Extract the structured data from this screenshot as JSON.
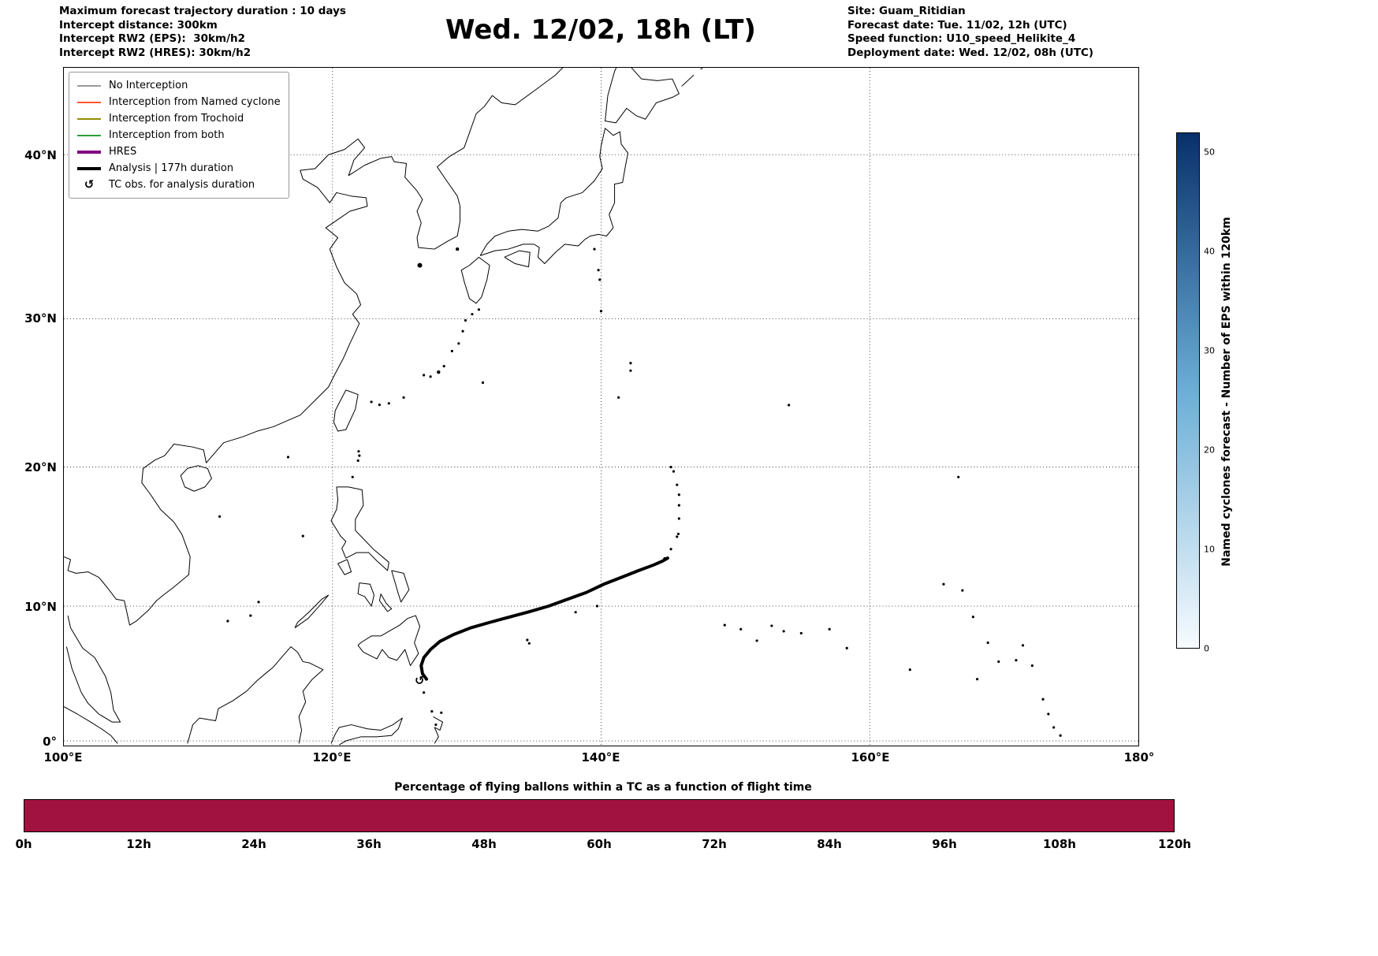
{
  "header_left": {
    "line1": "Maximum forecast trajectory duration : 10 days",
    "line2": "Intercept distance: 300km",
    "line3": "Intercept RW2 (EPS):  30km/h2",
    "line4": "Intercept RW2 (HRES): 30km/h2"
  },
  "title": "Wed. 12/02, 18h (LT)",
  "header_right": {
    "line1": "Site: Guam_Ritidian",
    "line2": "Forecast date: Tue. 11/02, 12h (UTC)",
    "line3": "Speed function: U10_speed_Helikite_4",
    "line4": "Deployment date: Wed. 12/02, 08h (UTC)"
  },
  "legend": {
    "items": [
      {
        "label": "No Interception",
        "color": "#9a9a9a",
        "thick": false
      },
      {
        "label": "Interception from Named cyclone",
        "color": "#ff5533",
        "thick": false
      },
      {
        "label": "Interception from Trochoid",
        "color": "#8f8f00",
        "thick": false
      },
      {
        "label": "Interception from both",
        "color": "#2e9e3e",
        "thick": false
      },
      {
        "label": "HRES",
        "color": "#800080",
        "thick": true
      },
      {
        "label": "Analysis | 177h duration",
        "color": "#000000",
        "thick": true
      },
      {
        "label": "TC obs. for analysis duration",
        "symbol": "↺",
        "color": "#000000"
      }
    ]
  },
  "map_axes": {
    "y_ticks": [
      "40°N",
      "30°N",
      "20°N",
      "10°N",
      "0°"
    ],
    "x_ticks": [
      "100°E",
      "120°E",
      "140°E",
      "160°E",
      "180°"
    ]
  },
  "colorbar": {
    "label": "Named cyclones forecast - Number of EPS within 120km",
    "ticks": [
      "0",
      "10",
      "20",
      "30",
      "40",
      "50"
    ],
    "range": [
      0,
      52
    ],
    "color_low": "#f7fbff",
    "color_mid": "#6baed6",
    "color_high": "#08306b"
  },
  "bottom_chart": {
    "title": "Percentage of flying ballons within a TC as a function of flight time",
    "x_ticks": [
      "0h",
      "12h",
      "24h",
      "36h",
      "48h",
      "60h",
      "72h",
      "84h",
      "96h",
      "108h",
      "120h"
    ],
    "bar_color": "#a21240"
  },
  "chart_data": [
    {
      "type": "line",
      "name": "analysis-trajectory",
      "description": "Analysis TC track (177h duration) on Mercator map, extent 100E-180E / 0N-45N",
      "x_range_lon": [
        100,
        180
      ],
      "y_range_lat": [
        0,
        45
      ],
      "series": [
        {
          "name": "Analysis | 177h duration",
          "points_lon_lat": [
            [
              127.0,
              4.6
            ],
            [
              126.7,
              5.0
            ],
            [
              126.6,
              5.6
            ],
            [
              126.8,
              6.2
            ],
            [
              127.3,
              6.8
            ],
            [
              128.0,
              7.4
            ],
            [
              129.0,
              7.9
            ],
            [
              130.3,
              8.4
            ],
            [
              131.7,
              8.8
            ],
            [
              133.2,
              9.2
            ],
            [
              134.7,
              9.6
            ],
            [
              136.1,
              10.0
            ],
            [
              137.5,
              10.5
            ],
            [
              138.9,
              11.0
            ],
            [
              140.2,
              11.6
            ],
            [
              141.5,
              12.1
            ],
            [
              142.8,
              12.6
            ],
            [
              143.9,
              13.0
            ],
            [
              144.6,
              13.3
            ],
            [
              144.95,
              13.5
            ]
          ]
        }
      ]
    },
    {
      "type": "bar",
      "name": "balloon-tc-percentage",
      "title": "Percentage of flying ballons within a TC as a function of flight time",
      "x_ticks_hours": [
        0,
        12,
        24,
        36,
        48,
        60,
        72,
        84,
        96,
        108,
        120
      ],
      "value_percent": 100
    }
  ]
}
